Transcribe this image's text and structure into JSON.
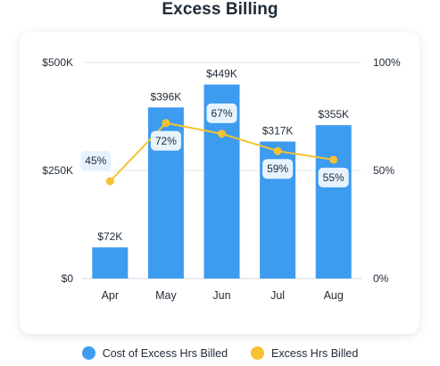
{
  "title": "Excess Billing",
  "colors": {
    "bar": "#3d9bf0",
    "line": "#f6c132",
    "grid": "#e3e7ee",
    "label_bg": "#e7f3fc"
  },
  "legend": [
    {
      "label": "Cost of Excess Hrs Billed",
      "color": "#3d9bf0"
    },
    {
      "label": "Excess Hrs Billed",
      "color": "#f6c132"
    }
  ],
  "chart_data": {
    "type": "bar",
    "title": "Excess Billing",
    "categories": [
      "Apr",
      "May",
      "Jun",
      "Jul",
      "Aug"
    ],
    "series": [
      {
        "name": "Cost of Excess Hrs Billed",
        "type": "bar",
        "axis": "left",
        "values": [
          72000,
          396000,
          449000,
          317000,
          355000
        ],
        "data_labels": [
          "$72K",
          "$396K",
          "$449K",
          "$317K",
          "$355K"
        ]
      },
      {
        "name": "Excess Hrs Billed",
        "type": "line",
        "axis": "right",
        "values": [
          45,
          72,
          67,
          59,
          55
        ],
        "data_labels": [
          "45%",
          "72%",
          "67%",
          "59%",
          "55%"
        ]
      }
    ],
    "y_left": {
      "ticks": [
        "$0",
        "$250K",
        "$500K"
      ],
      "tick_values": [
        0,
        250000,
        500000
      ],
      "ylim": [
        0,
        500000
      ]
    },
    "y_right": {
      "ticks": [
        "0%",
        "50%",
        "100%"
      ],
      "tick_values": [
        0,
        50,
        100
      ],
      "ylim": [
        0,
        100
      ]
    },
    "grid": true,
    "legend_position": "bottom"
  }
}
